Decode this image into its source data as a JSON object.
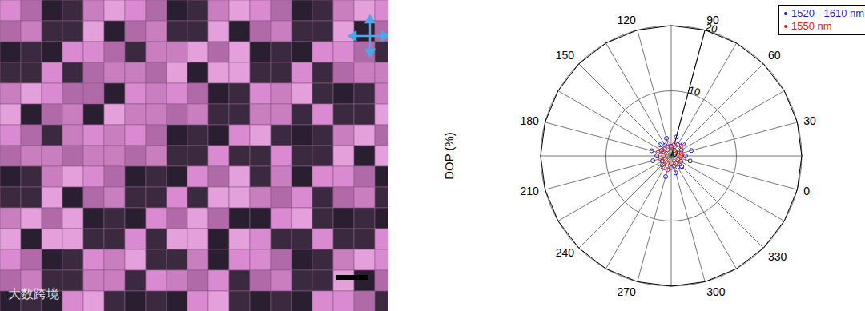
{
  "image": {
    "watermark": "大数跨境"
  },
  "chart_data": {
    "type": "polar scatter",
    "ylabel": "DOP (%)",
    "categories": [
      "0",
      null,
      "30",
      null,
      "60",
      null,
      "90",
      null,
      "120",
      null,
      "150",
      null,
      "180",
      null,
      "210",
      null,
      "240",
      null,
      "270",
      null,
      "300",
      null,
      "330",
      null
    ],
    "ylim": [
      0,
      20
    ],
    "yticks": [
      0,
      10,
      20
    ],
    "grid": true,
    "legend": "upper right",
    "marker": "circle",
    "series": [
      {
        "name": "1520 - 1610 nm",
        "color": "#1f1fd6",
        "values": [
          3.2,
          1.8,
          2.6,
          2.0,
          3.0,
          1.5,
          2.8,
          1.9,
          2.4,
          1.7,
          3.1,
          2.2,
          2.9,
          1.6,
          2.5,
          2.1,
          3.3,
          1.8,
          2.7,
          2.0,
          2.3,
          1.7,
          3.0,
          2.2
        ]
      },
      {
        "name": "1550 nm",
        "color": "#e02020",
        "values": [
          1.6,
          1.2,
          2.2,
          1.0,
          1.8,
          1.3,
          2.0,
          1.1,
          1.5,
          1.4,
          2.1,
          1.2,
          1.7,
          1.0,
          1.9,
          1.3,
          2.2,
          1.1,
          1.6,
          1.4,
          1.8,
          1.2,
          2.0,
          1.5
        ]
      }
    ]
  }
}
